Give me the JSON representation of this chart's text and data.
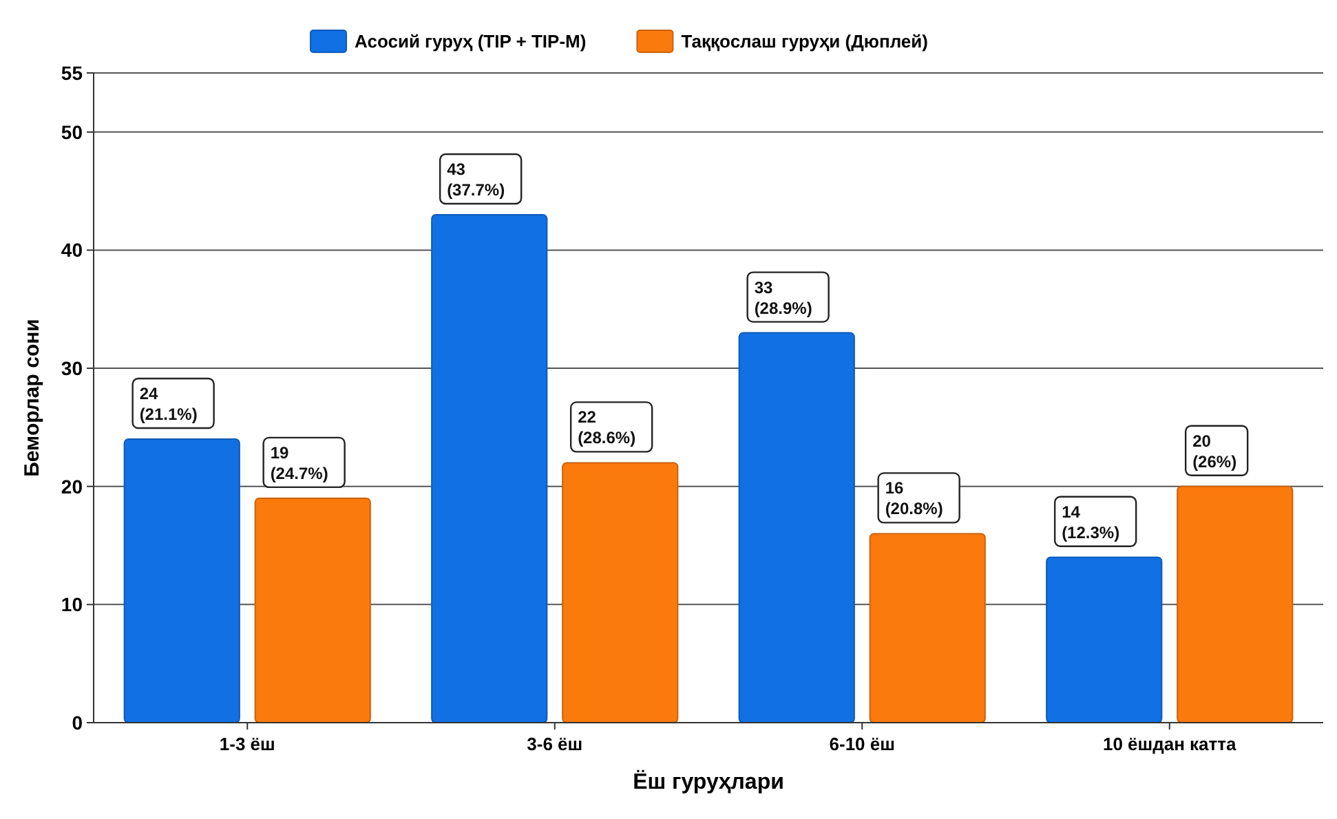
{
  "chart_data": {
    "type": "bar",
    "xlabel": "Ёш гуруҳлари",
    "ylabel": "Беморлар сони",
    "categories": [
      "1-3 ёш",
      "3-6 ёш",
      "6-10 ёш",
      "10 ёшдан катта"
    ],
    "series": [
      {
        "name": "Асосий гуруҳ (TIP + TIP-M)",
        "color": "#1170e4",
        "values": [
          24,
          43,
          33,
          14
        ],
        "value_labels": [
          "24\n(21.1%)",
          "43\n(37.7%)",
          "33\n(28.9%)",
          "14\n(12.3%)"
        ]
      },
      {
        "name": "Таққослаш гуруҳи (Дюплей)",
        "color": "#fb7a0c",
        "values": [
          19,
          22,
          16,
          20
        ],
        "value_labels": [
          "19\n(24.7%)",
          "22\n(28.6%)",
          "16\n(20.8%)",
          "20\n(26%)"
        ]
      }
    ],
    "ylim": [
      0,
      55
    ],
    "yticks": [
      0,
      10,
      20,
      30,
      40,
      50,
      55
    ],
    "grid": "y",
    "legend": "top"
  }
}
